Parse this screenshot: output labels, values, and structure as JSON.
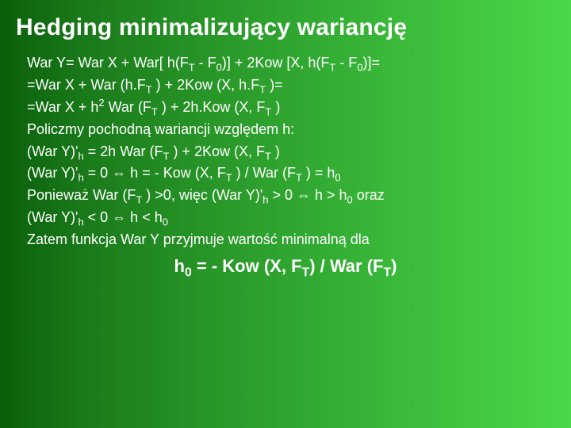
{
  "background": {
    "gradient_start": "#0a5f0a",
    "gradient_mid1": "#1a7a1a",
    "gradient_mid2": "#2a9a2a",
    "gradient_mid3": "#3aba3a",
    "gradient_end": "#4ad84a"
  },
  "text_color": "#ffffff",
  "font_family": "Arial",
  "title": {
    "text": "Hedging minimalizujący wariancję",
    "font_size": 30,
    "font_weight": "bold"
  },
  "body_font_size": 18,
  "lines": [
    {
      "html": "War Y= War X + War[ h(F<sub>T</sub> - F<sub>0</sub>)] + 2Kow [X, h(F<sub>T</sub> - F<sub>0</sub>)]="
    },
    {
      "html": "=War X + War (h.F<sub>T</sub> ) + 2Kow (X, h.F<sub>T</sub> )="
    },
    {
      "html": "=War X + h<sup>2</sup> War (F<sub>T</sub> ) + 2h.Kow (X, F<sub>T</sub> )"
    },
    {
      "html": "Policzmy pochodną wariancji względem h:"
    },
    {
      "html": "(War Y)'<sub>h</sub> = 2h War (F<sub>T</sub> ) + 2Kow (X, F<sub>T</sub> )"
    },
    {
      "html": "(War Y)'<sub>h</sub> = 0 ⇔ h = - Kow (X, F<sub>T</sub> ) / War (F<sub>T</sub> ) = h<sub>0</sub>"
    },
    {
      "html": "Ponieważ War (F<sub>T</sub> ) >0, więc (War Y)'<sub>h</sub> > 0 ⇔ h > h<sub>0</sub> oraz"
    },
    {
      "html": "(War Y)'<sub>h</sub> < 0 ⇔ h < h<sub>0</sub>"
    },
    {
      "html": "Zatem funkcja War Y przyjmuje wartość minimalną dla"
    }
  ],
  "final": {
    "html": "h<sub>0</sub> = - Kow (X, F<sub>T</sub>) / War (F<sub>T</sub>)",
    "font_size": 22,
    "font_weight": "bold"
  }
}
